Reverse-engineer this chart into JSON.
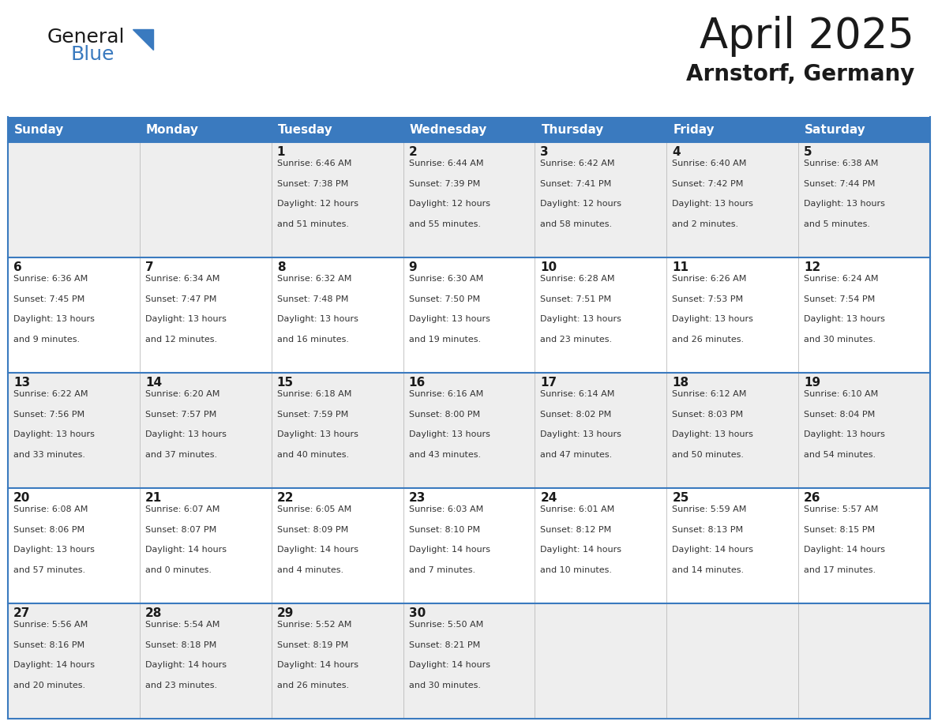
{
  "title": "April 2025",
  "subtitle": "Arnstorf, Germany",
  "header_bg_color": "#3a7abf",
  "header_text_color": "#ffffff",
  "grid_line_color": "#3a7abf",
  "cell_bg_even": "#eeeeee",
  "cell_bg_odd": "#ffffff",
  "day_headers": [
    "Sunday",
    "Monday",
    "Tuesday",
    "Wednesday",
    "Thursday",
    "Friday",
    "Saturday"
  ],
  "weeks": [
    [
      {
        "day": "",
        "info": ""
      },
      {
        "day": "",
        "info": ""
      },
      {
        "day": "1",
        "info": "Sunrise: 6:46 AM\nSunset: 7:38 PM\nDaylight: 12 hours\nand 51 minutes."
      },
      {
        "day": "2",
        "info": "Sunrise: 6:44 AM\nSunset: 7:39 PM\nDaylight: 12 hours\nand 55 minutes."
      },
      {
        "day": "3",
        "info": "Sunrise: 6:42 AM\nSunset: 7:41 PM\nDaylight: 12 hours\nand 58 minutes."
      },
      {
        "day": "4",
        "info": "Sunrise: 6:40 AM\nSunset: 7:42 PM\nDaylight: 13 hours\nand 2 minutes."
      },
      {
        "day": "5",
        "info": "Sunrise: 6:38 AM\nSunset: 7:44 PM\nDaylight: 13 hours\nand 5 minutes."
      }
    ],
    [
      {
        "day": "6",
        "info": "Sunrise: 6:36 AM\nSunset: 7:45 PM\nDaylight: 13 hours\nand 9 minutes."
      },
      {
        "day": "7",
        "info": "Sunrise: 6:34 AM\nSunset: 7:47 PM\nDaylight: 13 hours\nand 12 minutes."
      },
      {
        "day": "8",
        "info": "Sunrise: 6:32 AM\nSunset: 7:48 PM\nDaylight: 13 hours\nand 16 minutes."
      },
      {
        "day": "9",
        "info": "Sunrise: 6:30 AM\nSunset: 7:50 PM\nDaylight: 13 hours\nand 19 minutes."
      },
      {
        "day": "10",
        "info": "Sunrise: 6:28 AM\nSunset: 7:51 PM\nDaylight: 13 hours\nand 23 minutes."
      },
      {
        "day": "11",
        "info": "Sunrise: 6:26 AM\nSunset: 7:53 PM\nDaylight: 13 hours\nand 26 minutes."
      },
      {
        "day": "12",
        "info": "Sunrise: 6:24 AM\nSunset: 7:54 PM\nDaylight: 13 hours\nand 30 minutes."
      }
    ],
    [
      {
        "day": "13",
        "info": "Sunrise: 6:22 AM\nSunset: 7:56 PM\nDaylight: 13 hours\nand 33 minutes."
      },
      {
        "day": "14",
        "info": "Sunrise: 6:20 AM\nSunset: 7:57 PM\nDaylight: 13 hours\nand 37 minutes."
      },
      {
        "day": "15",
        "info": "Sunrise: 6:18 AM\nSunset: 7:59 PM\nDaylight: 13 hours\nand 40 minutes."
      },
      {
        "day": "16",
        "info": "Sunrise: 6:16 AM\nSunset: 8:00 PM\nDaylight: 13 hours\nand 43 minutes."
      },
      {
        "day": "17",
        "info": "Sunrise: 6:14 AM\nSunset: 8:02 PM\nDaylight: 13 hours\nand 47 minutes."
      },
      {
        "day": "18",
        "info": "Sunrise: 6:12 AM\nSunset: 8:03 PM\nDaylight: 13 hours\nand 50 minutes."
      },
      {
        "day": "19",
        "info": "Sunrise: 6:10 AM\nSunset: 8:04 PM\nDaylight: 13 hours\nand 54 minutes."
      }
    ],
    [
      {
        "day": "20",
        "info": "Sunrise: 6:08 AM\nSunset: 8:06 PM\nDaylight: 13 hours\nand 57 minutes."
      },
      {
        "day": "21",
        "info": "Sunrise: 6:07 AM\nSunset: 8:07 PM\nDaylight: 14 hours\nand 0 minutes."
      },
      {
        "day": "22",
        "info": "Sunrise: 6:05 AM\nSunset: 8:09 PM\nDaylight: 14 hours\nand 4 minutes."
      },
      {
        "day": "23",
        "info": "Sunrise: 6:03 AM\nSunset: 8:10 PM\nDaylight: 14 hours\nand 7 minutes."
      },
      {
        "day": "24",
        "info": "Sunrise: 6:01 AM\nSunset: 8:12 PM\nDaylight: 14 hours\nand 10 minutes."
      },
      {
        "day": "25",
        "info": "Sunrise: 5:59 AM\nSunset: 8:13 PM\nDaylight: 14 hours\nand 14 minutes."
      },
      {
        "day": "26",
        "info": "Sunrise: 5:57 AM\nSunset: 8:15 PM\nDaylight: 14 hours\nand 17 minutes."
      }
    ],
    [
      {
        "day": "27",
        "info": "Sunrise: 5:56 AM\nSunset: 8:16 PM\nDaylight: 14 hours\nand 20 minutes."
      },
      {
        "day": "28",
        "info": "Sunrise: 5:54 AM\nSunset: 8:18 PM\nDaylight: 14 hours\nand 23 minutes."
      },
      {
        "day": "29",
        "info": "Sunrise: 5:52 AM\nSunset: 8:19 PM\nDaylight: 14 hours\nand 26 minutes."
      },
      {
        "day": "30",
        "info": "Sunrise: 5:50 AM\nSunset: 8:21 PM\nDaylight: 14 hours\nand 30 minutes."
      },
      {
        "day": "",
        "info": ""
      },
      {
        "day": "",
        "info": ""
      },
      {
        "day": "",
        "info": ""
      }
    ]
  ],
  "logo_general_color": "#1a1a1a",
  "logo_blue_color": "#3a7abf",
  "logo_triangle_color": "#3a7abf",
  "title_fontsize": 38,
  "subtitle_fontsize": 20,
  "header_fontsize": 11,
  "day_num_fontsize": 11,
  "info_fontsize": 8
}
